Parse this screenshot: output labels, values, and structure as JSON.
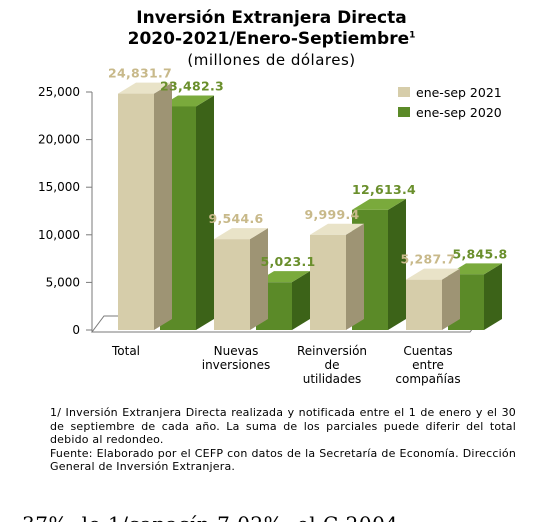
{
  "colors": {
    "series_2021": "#d6cdaa",
    "series_2021_side": "#9e9474",
    "series_2021_top": "#e9e3c8",
    "series_2020": "#5b8a28",
    "series_2020_side": "#3c6318",
    "series_2020_top": "#7aaa3c",
    "label_2021": "#c8b98a",
    "label_2020": "#6a8f2c"
  },
  "chart_data": {
    "type": "bar",
    "title": "Inversión Extranjera Directa",
    "title_line2": "2020-2021/Enero-Septiembre",
    "title_sup": "1",
    "subtitle": "(millones de dólares)",
    "categories": [
      "Total",
      "Nuevas inversiones",
      "Reinversión de utilidades",
      "Cuentas entre compañías"
    ],
    "category_lines": [
      [
        "Total"
      ],
      [
        "Nuevas",
        "inversiones"
      ],
      [
        "Reinversión",
        "de",
        "utilidades"
      ],
      [
        "Cuentas",
        "entre",
        "compañías"
      ]
    ],
    "series": [
      {
        "name": "ene-sep 2021",
        "values": [
          24831.7,
          9544.6,
          9999.4,
          5287.7
        ],
        "labels": [
          "24,831.7",
          "9,544.6",
          "9,999.4",
          "5,287.7"
        ]
      },
      {
        "name": "ene-sep 2020",
        "values": [
          23482.3,
          5023.1,
          12613.4,
          5845.8
        ],
        "labels": [
          "23,482.3",
          "5,023.1",
          "12,613.4",
          "5,845.8"
        ]
      }
    ],
    "ylim": [
      0,
      25000
    ],
    "yticks": [
      0,
      5000,
      10000,
      15000,
      20000,
      25000
    ],
    "ytick_labels": [
      "0",
      "5,000",
      "10,000",
      "15,000",
      "20,000",
      "25,000"
    ],
    "legend_position": "top-right",
    "grid": false
  },
  "notes": {
    "note_1": "1/ Inversión Extranjera Directa realizada y notificada entre el 1 de enero y el 30 de septiembre de cada año. La suma de los parciales puede diferir del total debido al redondeo.",
    "source": "Fuente: Elaborado por el CEFP con datos de la Secretaría de Economía. Dirección General de Inversión Extranjera."
  },
  "cut_text": "37%, lo 1/capacín 7 02%, el C 2004"
}
